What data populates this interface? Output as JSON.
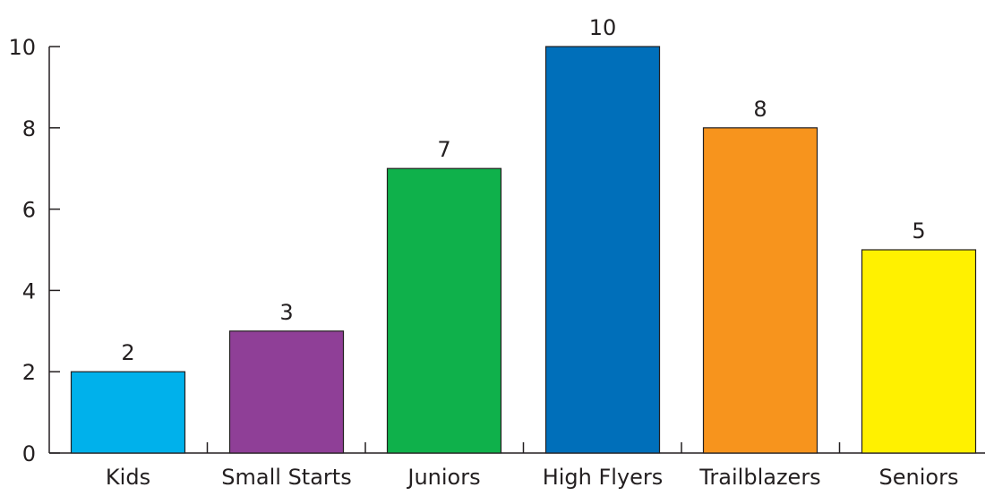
{
  "chart_data": {
    "type": "bar",
    "title": "",
    "xlabel": "",
    "ylabel": "",
    "categories": [
      "Kids",
      "Small Starts",
      "Juniors",
      "High Flyers",
      "Trailblazers",
      "Seniors"
    ],
    "values": [
      2,
      3,
      7,
      10,
      8,
      5
    ],
    "colors": [
      "#00b1eb",
      "#8f3f97",
      "#0fb14b",
      "#006fba",
      "#f7941d",
      "#fff100"
    ],
    "data_labels": [
      "2",
      "3",
      "7",
      "10",
      "8",
      "5"
    ],
    "y_ticks": [
      "0",
      "2",
      "4",
      "6",
      "8",
      "10"
    ],
    "ylim": [
      0,
      10
    ],
    "grid": false,
    "legend": "none"
  }
}
